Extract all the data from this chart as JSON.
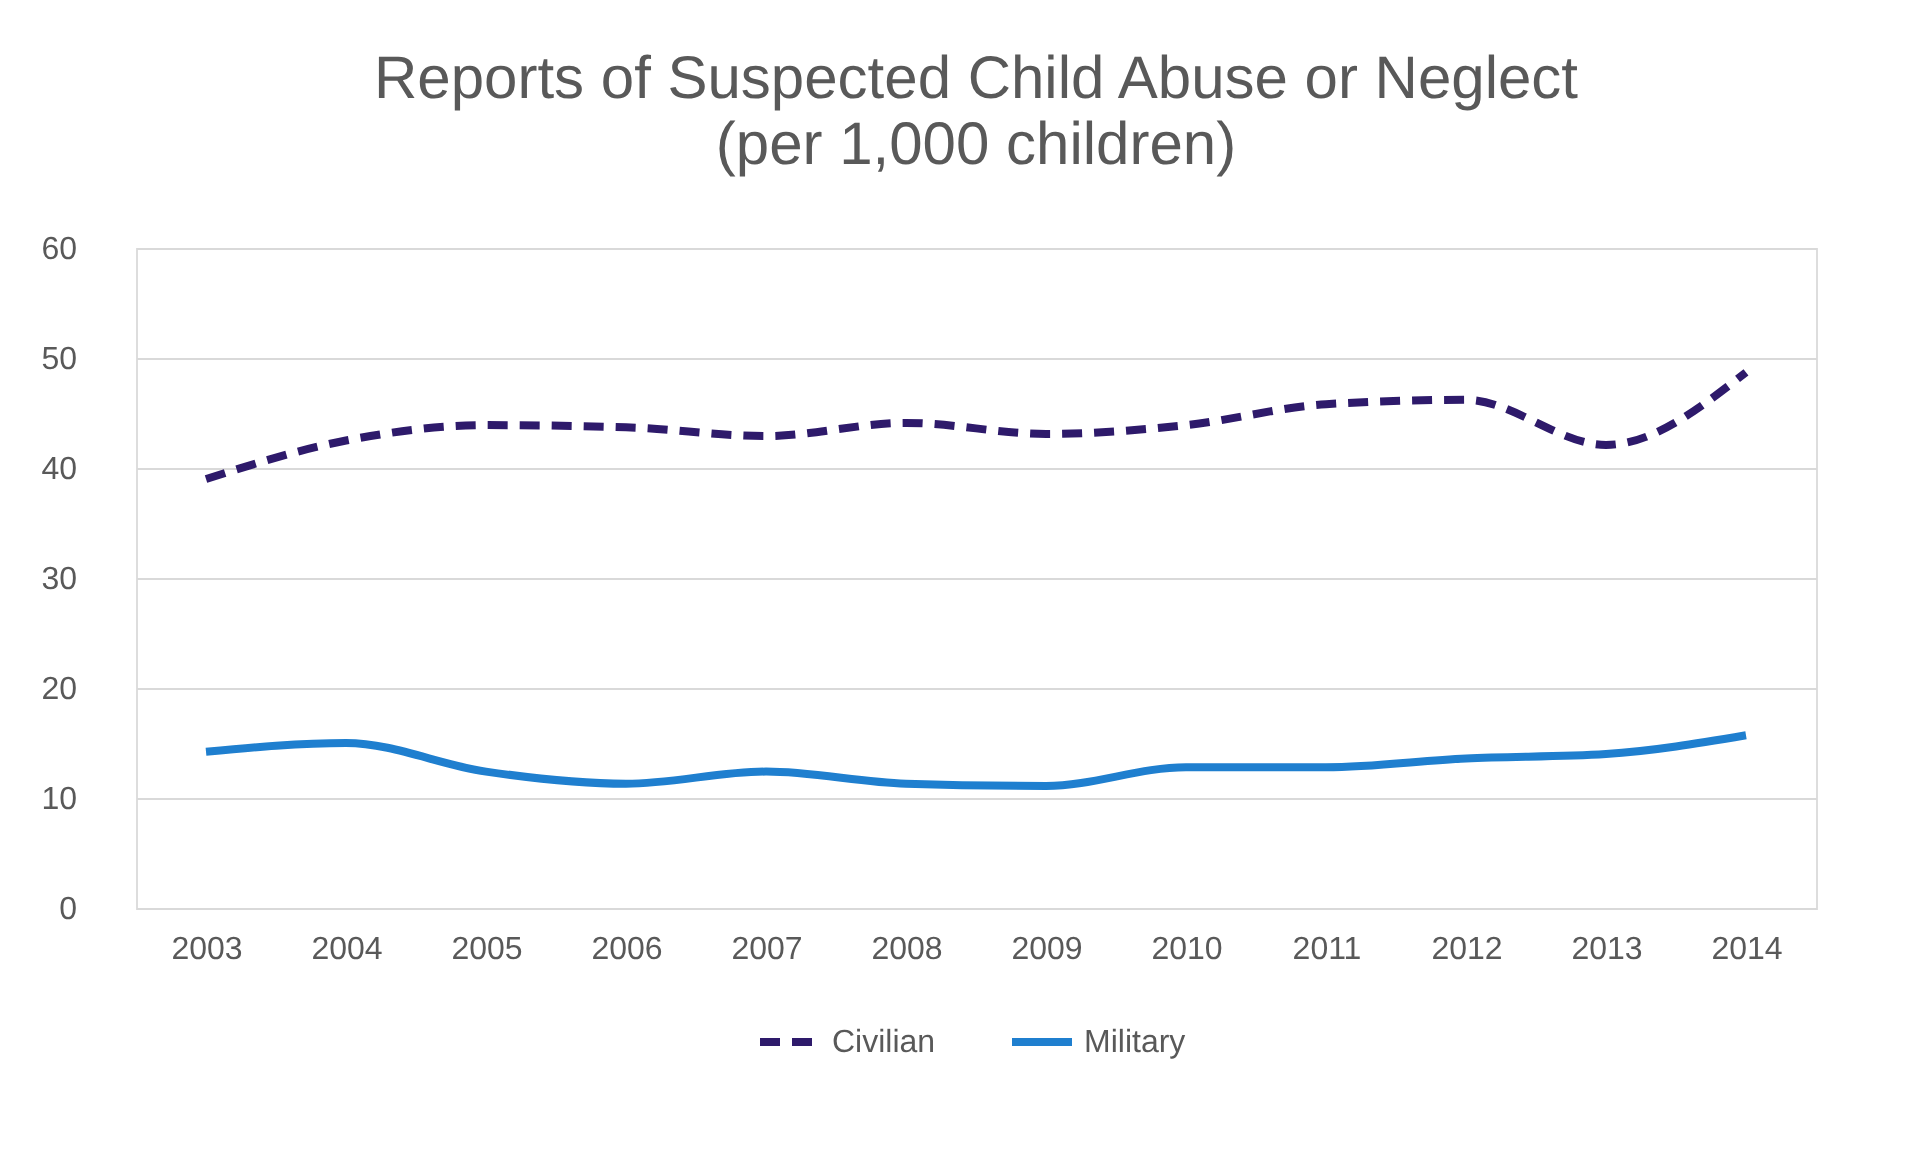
{
  "chart_data": {
    "type": "line",
    "title": "Reports of Suspected Child Abuse or Neglect",
    "subtitle": "(per 1,000 children)",
    "categories": [
      "2003",
      "2004",
      "2005",
      "2006",
      "2007",
      "2008",
      "2009",
      "2010",
      "2011",
      "2012",
      "2013",
      "2014"
    ],
    "series": [
      {
        "name": "Civilian",
        "color": "#2e1a6b",
        "line_style": "dashed",
        "values": [
          39.0,
          42.5,
          43.9,
          43.7,
          42.9,
          44.1,
          43.1,
          43.9,
          45.8,
          46.2,
          42.1,
          48.7
        ]
      },
      {
        "name": "Military",
        "color": "#1f7fcf",
        "line_style": "solid",
        "values": [
          14.2,
          15.0,
          12.4,
          11.3,
          12.4,
          11.3,
          11.1,
          12.8,
          12.8,
          13.6,
          14.0,
          15.7
        ]
      }
    ],
    "ylim": [
      0,
      60
    ],
    "yticks": [
      0,
      10,
      20,
      30,
      40,
      50,
      60
    ],
    "grid": "y",
    "legend": "bottom",
    "marker": "none"
  }
}
